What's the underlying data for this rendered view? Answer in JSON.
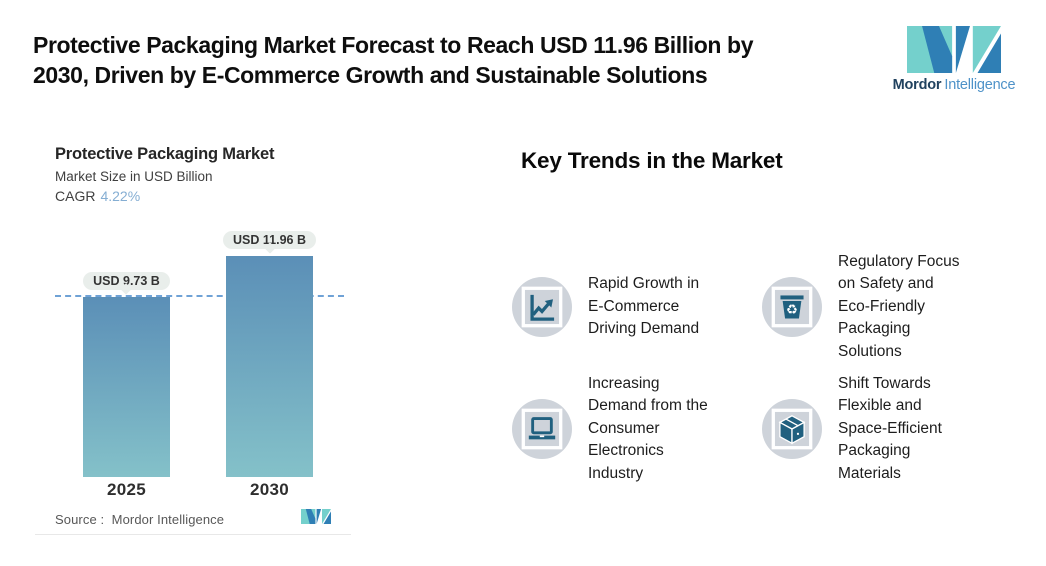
{
  "header": {
    "title": "Protective Packaging Market Forecast to Reach USD 11.96 Billion by\n2030, Driven by E-Commerce Growth and Sustainable Solutions",
    "brand": {
      "bold": "Mordor",
      "light": "Intelligence"
    }
  },
  "chart_card": {
    "title": "Protective Packaging Market",
    "subtitle": "Market Size in USD Billion",
    "cagr_label": "CAGR",
    "cagr_value": "4.22%",
    "source_label": "Source :",
    "source_value": "Mordor Intelligence"
  },
  "chart_data": {
    "type": "bar",
    "title": "Protective Packaging Market",
    "subtitle": "Market Size in USD Billion",
    "cagr_pct": 4.22,
    "categories": [
      "2025",
      "2030"
    ],
    "values": [
      9.73,
      11.96
    ],
    "unit": "USD Billion",
    "bar_labels": [
      "USD 9.73 B",
      "USD 11.96 B"
    ],
    "reference_line": 9.73,
    "ylim": [
      0,
      13.5
    ],
    "gridlines": false,
    "legend": false,
    "bar_gradient_top": "#5b8fb7",
    "bar_gradient_bottom": "#84c1c9",
    "reference_line_color": "#6fa2d6",
    "source": "Source : Mordor Intelligence"
  },
  "trends": {
    "heading": "Key Trends in the Market",
    "items": [
      {
        "icon": "line-chart-icon",
        "text": "Rapid Growth in\nE-Commerce\nDriving Demand"
      },
      {
        "icon": "recycle-bin-icon",
        "text": "Regulatory Focus\non Safety and\nEco-Friendly\nPackaging\nSolutions"
      },
      {
        "icon": "laptop-icon",
        "text": "Increasing\nDemand from the\nConsumer\nElectronics\nIndustry"
      },
      {
        "icon": "package-box-icon",
        "text": "Shift Towards\nFlexible and\nSpace-Efficient\nPackaging\nMaterials"
      }
    ]
  },
  "colors": {
    "icon_circle": "#ced3da",
    "icon_glyph": "#20607f",
    "logo_teal": "#74d0cc",
    "logo_blue": "#2f7fb5",
    "tooltip_bg": "#e9eeeb",
    "cagr_accent": "#85aed3"
  }
}
